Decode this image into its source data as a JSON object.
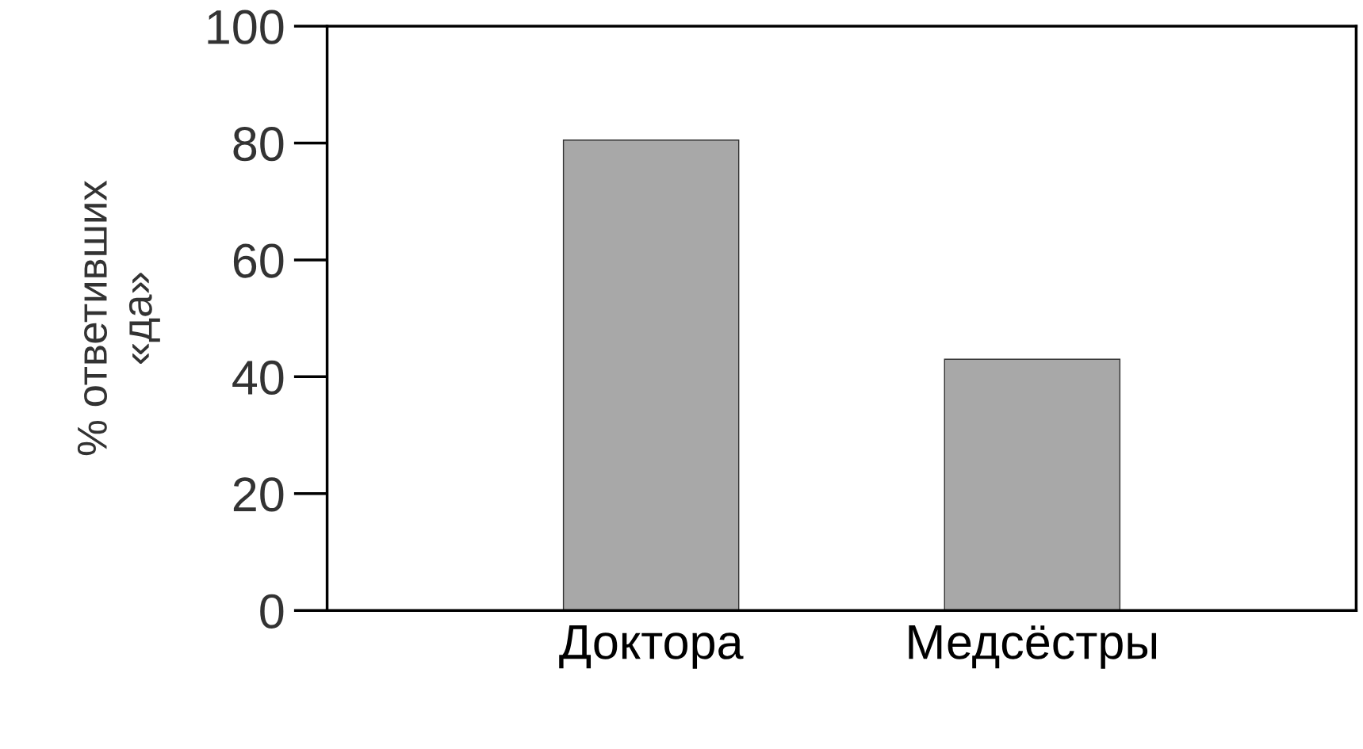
{
  "chart_data": {
    "type": "bar",
    "categories": [
      "Доктора",
      "Медсёстры"
    ],
    "values": [
      80.5,
      43
    ],
    "color": "#a8a8a8",
    "ylabel": "% ответивших\n«да»",
    "ylim": [
      0,
      100
    ],
    "yticks": [
      0,
      20,
      40,
      60,
      80,
      100
    ],
    "grid": false,
    "legend": false
  }
}
